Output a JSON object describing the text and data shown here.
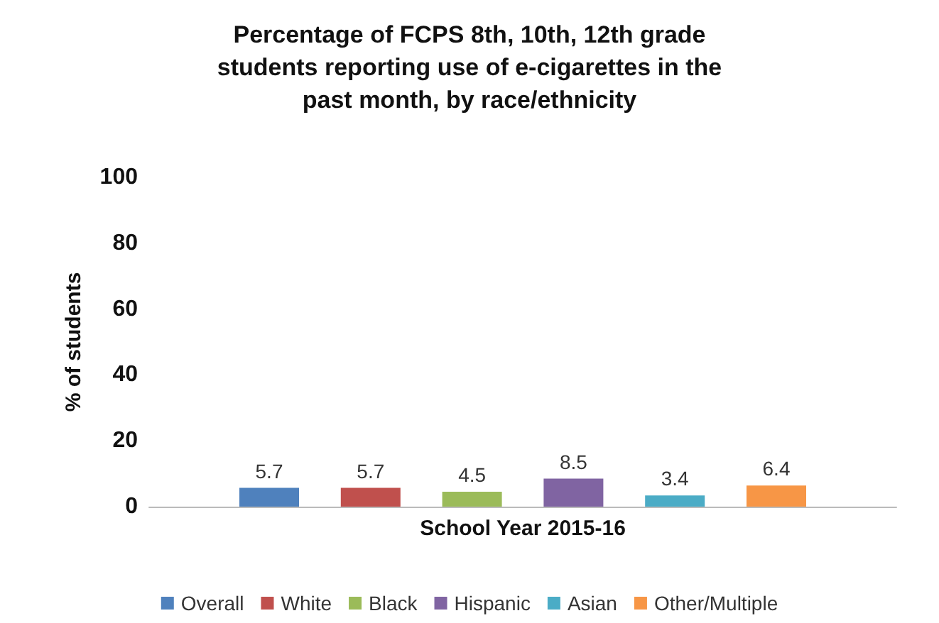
{
  "chart_data": {
    "type": "bar",
    "title": "Percentage of FCPS 8th, 10th, 12th grade\nstudents reporting use of e-cigarettes in the\npast month, by race/ethnicity",
    "ylabel": "% of students",
    "categories": [
      "School Year 2015-16"
    ],
    "series": [
      {
        "name": "Overall",
        "color": "#4f81bd",
        "values": [
          5.7
        ]
      },
      {
        "name": "White",
        "color": "#c0504d",
        "values": [
          5.7
        ]
      },
      {
        "name": "Black",
        "color": "#9bbb59",
        "values": [
          4.5
        ]
      },
      {
        "name": "Hispanic",
        "color": "#8064a2",
        "values": [
          8.5
        ]
      },
      {
        "name": "Asian",
        "color": "#4bacc6",
        "values": [
          3.4
        ]
      },
      {
        "name": "Other/Multiple",
        "color": "#f79646",
        "values": [
          6.4
        ]
      }
    ],
    "ylim": [
      0,
      100
    ],
    "yticks": [
      0,
      20,
      40,
      60,
      80,
      100
    ],
    "grid": false,
    "legend": "bottom",
    "data_labels": true
  }
}
